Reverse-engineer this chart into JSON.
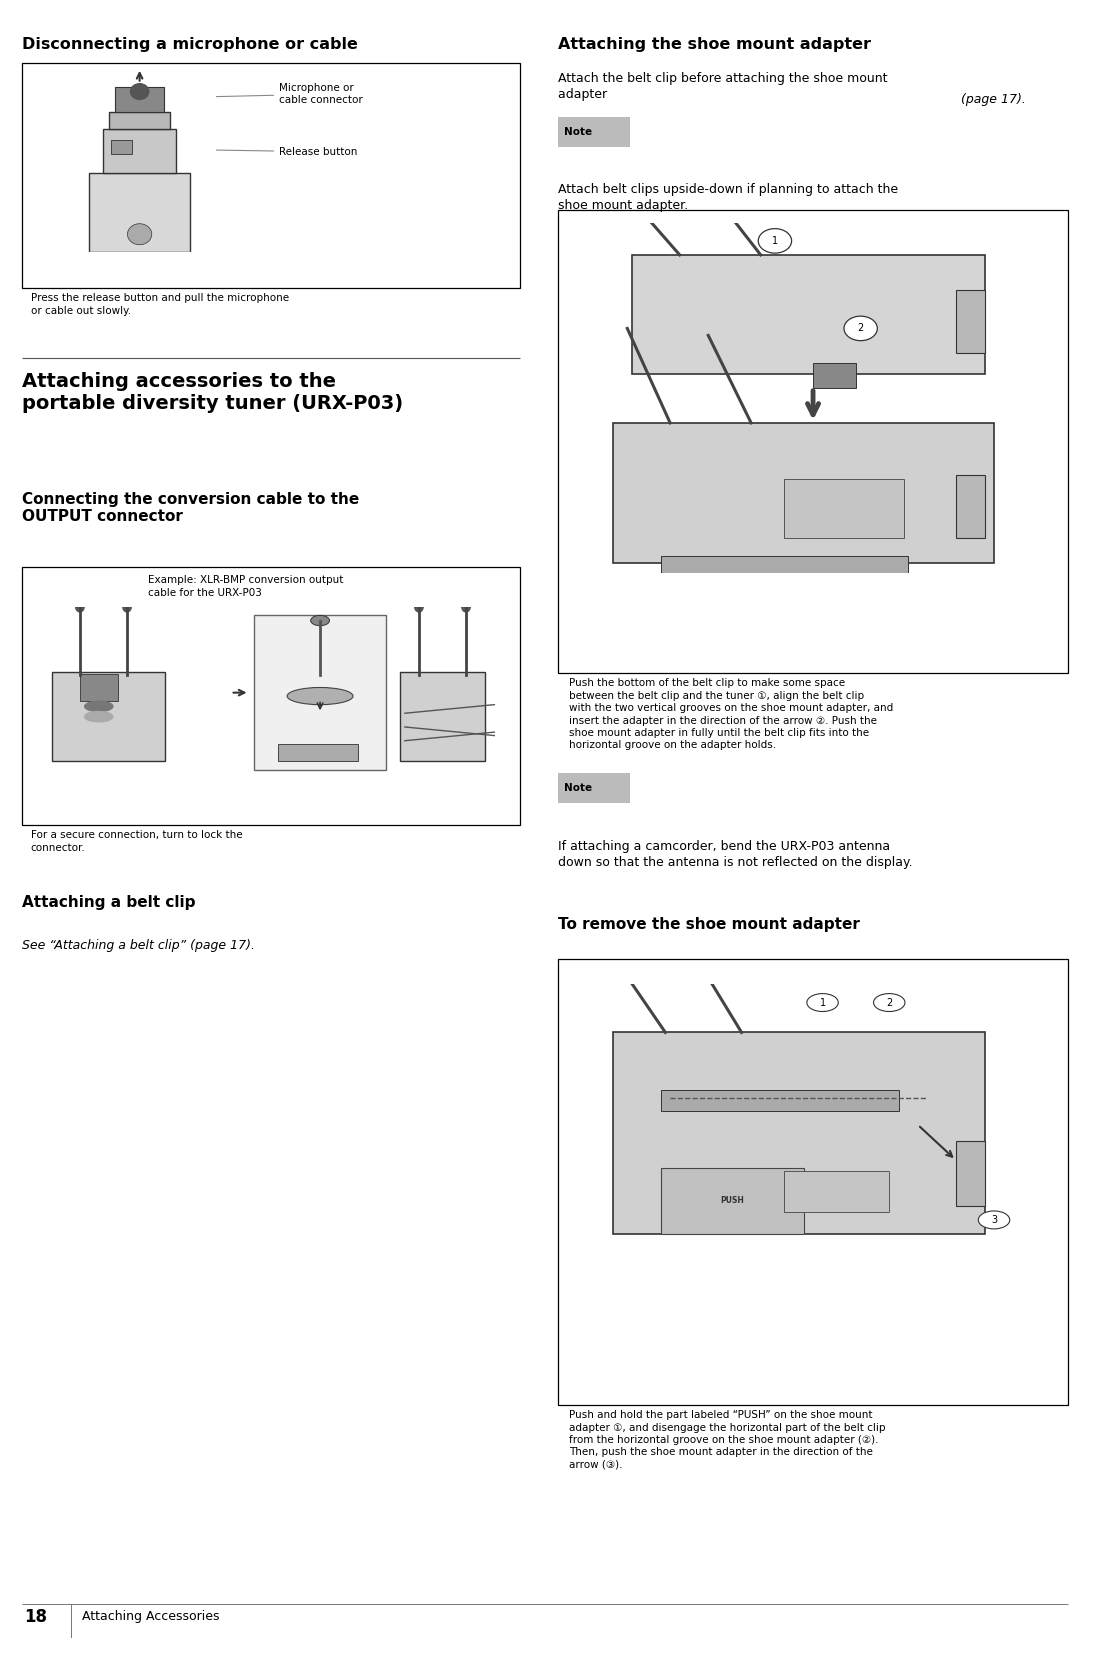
{
  "page_width": 10.95,
  "page_height": 16.67,
  "bg_color": "#ffffff",
  "footer_page": "18",
  "footer_text": "Attaching Accessories",
  "left_heading_disc": "Disconnecting a microphone or cable",
  "main_heading": "Attaching accessories to the\nportable diversity tuner (URX-P03)",
  "sub_heading1": "Connecting the conversion cable to the\nOUTPUT connector",
  "sub_heading2": "Attaching a belt clip",
  "right_heading": "Attaching the shoe mount adapter",
  "right_body1a": "Attach the belt clip before attaching the shoe mount\nadapter ",
  "right_body1b": "(page 17).",
  "note1_text": "Attach belt clips upside-down if planning to attach the\nshoe mount adapter.",
  "diagram1_caption": "Press the release button and pull the microphone\nor cable out slowly.",
  "diagram1_label1": "Microphone or\ncable connector",
  "diagram1_label2": "Release button",
  "xlr_caption_top": "Example: XLR-BMP conversion output\ncable for the URX-P03",
  "xlr_caption_bottom": "For a secure connection, turn to lock the\nconnector.",
  "belt_clip_ref": "See “Attaching a belt clip” (page 17).",
  "shoe_caption": "Push the bottom of the belt clip to make some space\nbetween the belt clip and the tuner ①, align the belt clip\nwith the two vertical grooves on the shoe mount adapter, and\ninsert the adapter in the direction of the arrow ②. Push the\nshoe mount adapter in fully until the belt clip fits into the\nhorizontal groove on the adapter holds.",
  "note2_text": "If attaching a camcorder, bend the URX-P03 antenna\ndown so that the antenna is not reflected on the display.",
  "remove_heading": "To remove the shoe mount adapter",
  "remove_caption": "Push and hold the part labeled “PUSH” on the shoe mount\nadapter ①, and disengage the horizontal part of the belt clip\nfrom the horizontal groove on the shoe mount adapter (②).\nThen, push the shoe mount adapter in the direction of the\narrow (③)."
}
